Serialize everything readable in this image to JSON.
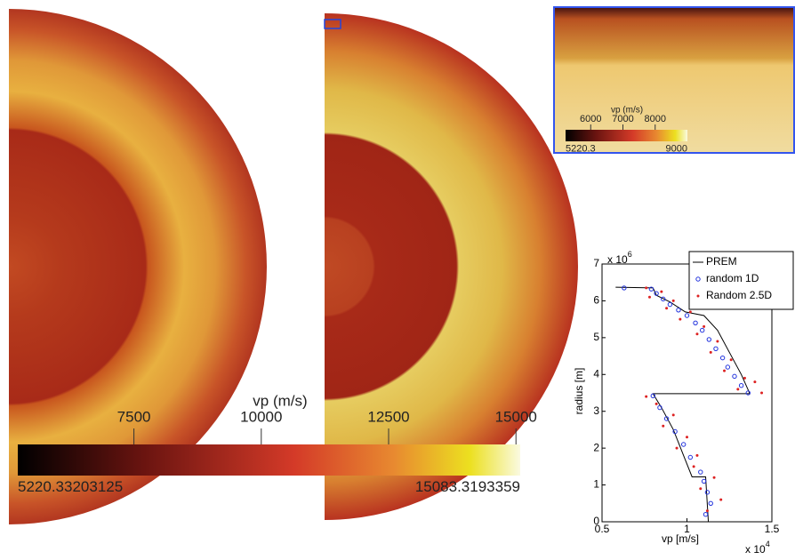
{
  "chart_data": [
    {
      "type": "scatter",
      "xlabel": "vp [m/s]",
      "ylabel": "radius [m]",
      "x_multiplier": {
        "base": "x 10",
        "exponent": "4"
      },
      "y_multiplier": {
        "base": "x 10",
        "exponent": "6"
      },
      "xlim": [
        0.5,
        1.5
      ],
      "xticks": [
        0.5,
        1,
        1.5
      ],
      "ylim": [
        0,
        7
      ],
      "yticks": [
        0,
        1,
        2,
        3,
        4,
        5,
        6,
        7
      ],
      "legend": "upper right",
      "series": [
        {
          "name": "PREM",
          "color": "#000000",
          "mode": "line",
          "x": [
            1.126,
            1.11,
            1.03,
            0.98,
            0.92,
            0.85,
            0.8,
            1.37,
            1.32,
            1.25,
            1.18,
            1.1,
            0.99,
            0.9,
            0.82,
            0.8,
            0.58
          ],
          "values": [
            0,
            1.22,
            1.22,
            1.8,
            2.5,
            3.1,
            3.48,
            3.48,
            4.0,
            4.6,
            5.2,
            5.6,
            5.7,
            5.97,
            6.15,
            6.35,
            6.37
          ]
        },
        {
          "name": "random 1D",
          "color": "#2233dd",
          "mode": "circle",
          "x": [
            0.79,
            0.82,
            0.86,
            0.9,
            0.95,
            1.0,
            1.05,
            1.09,
            1.13,
            1.17,
            1.21,
            1.24,
            1.28,
            1.32,
            1.36,
            0.8,
            0.84,
            0.88,
            0.93,
            0.98,
            1.02,
            1.08,
            1.1,
            1.12,
            1.14,
            1.11,
            0.63
          ],
          "values": [
            6.32,
            6.2,
            6.05,
            5.9,
            5.75,
            5.6,
            5.4,
            5.2,
            4.95,
            4.7,
            4.45,
            4.2,
            3.95,
            3.7,
            3.5,
            3.42,
            3.1,
            2.8,
            2.45,
            2.1,
            1.75,
            1.35,
            1.1,
            0.8,
            0.5,
            0.2,
            6.35
          ]
        },
        {
          "name": "Random 2.5D",
          "color": "#dd2222",
          "mode": "dot",
          "x": [
            0.76,
            0.85,
            0.78,
            0.92,
            0.88,
            1.02,
            0.96,
            1.1,
            1.06,
            1.18,
            1.14,
            1.26,
            1.22,
            1.34,
            1.3,
            1.4,
            1.44,
            0.76,
            0.82,
            0.92,
            0.86,
            1.0,
            0.94,
            1.06,
            1.04,
            1.16,
            1.08,
            1.2,
            1.12
          ],
          "values": [
            6.35,
            6.25,
            6.1,
            6.0,
            5.8,
            5.7,
            5.5,
            5.3,
            5.1,
            4.9,
            4.6,
            4.4,
            4.1,
            3.9,
            3.6,
            3.8,
            3.5,
            3.4,
            3.2,
            2.9,
            2.6,
            2.3,
            2.0,
            1.8,
            1.5,
            1.2,
            0.9,
            0.6,
            0.3
          ]
        }
      ]
    }
  ],
  "colorbar_main": {
    "title": "vp (m/s)",
    "range": [
      5220.33203125,
      15083.3193359
    ],
    "ticks": [
      7500,
      10000,
      12500,
      15000
    ]
  },
  "colorbar_inset": {
    "title": "vp (m/s)",
    "range": [
      5220.3,
      9000
    ],
    "ticks": [
      6000,
      7000,
      8000
    ]
  }
}
